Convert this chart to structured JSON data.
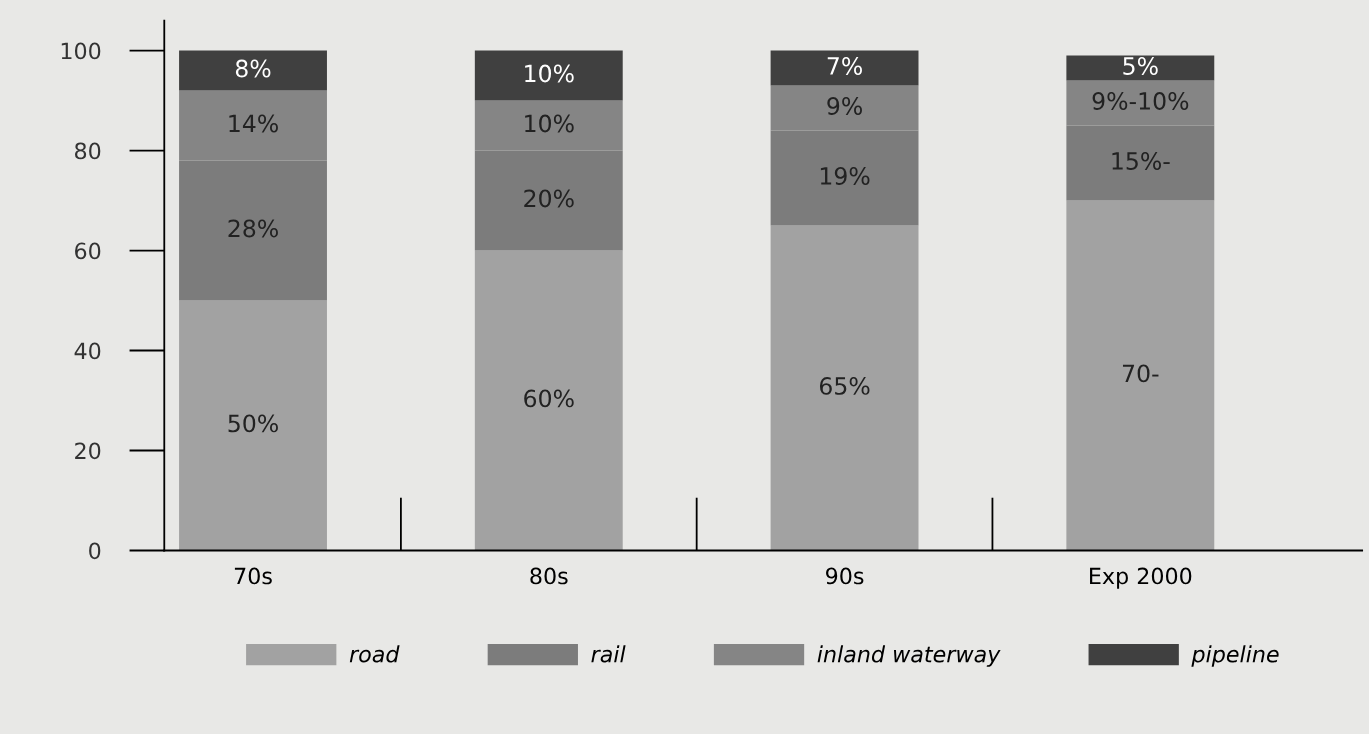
{
  "chart_data": {
    "type": "bar",
    "stacked": true,
    "categories": [
      "70s",
      "80s",
      "90s",
      "Exp 2000"
    ],
    "series": [
      {
        "name": "road",
        "color": "#a2a2a2",
        "values": [
          50,
          60,
          65,
          70
        ],
        "value_labels": [
          "50%",
          "60%",
          "65%",
          "70-"
        ]
      },
      {
        "name": "rail",
        "color": "#7c7c7c",
        "values": [
          28,
          20,
          19,
          15
        ],
        "value_labels": [
          "28%",
          "20%",
          "19%",
          "15%-"
        ]
      },
      {
        "name": "inland waterway",
        "color": "#858585",
        "values": [
          14,
          10,
          9,
          9
        ],
        "value_labels": [
          "14%",
          "10%",
          "9%",
          "9%-10%"
        ]
      },
      {
        "name": "pipeline",
        "color": "#404040",
        "values": [
          8,
          10,
          7,
          5
        ],
        "value_labels": [
          "8%",
          "10%",
          "7%",
          "5%"
        ]
      }
    ],
    "ylim": [
      0,
      106
    ],
    "yticks": [
      0,
      20,
      40,
      60,
      80,
      100
    ],
    "grid": false,
    "legend": "bottom"
  }
}
